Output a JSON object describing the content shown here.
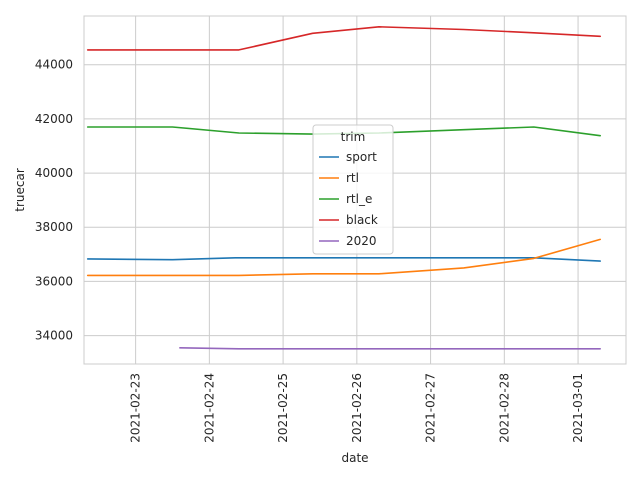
{
  "chart_data": {
    "type": "line",
    "title": "",
    "xlabel": "date",
    "ylabel": "truecar",
    "x_ticks": [
      "2021-02-23",
      "2021-02-24",
      "2021-02-25",
      "2021-02-26",
      "2021-02-27",
      "2021-02-28",
      "2021-03-01"
    ],
    "y_ticks": [
      "34000",
      "36000",
      "38000",
      "40000",
      "42000",
      "44000"
    ],
    "xlim": [
      "2021-02-22 07:12",
      "2021-03-01 15:36"
    ],
    "ylim": [
      32950,
      45800
    ],
    "grid": true,
    "legend": {
      "title": "trim",
      "placement": "center"
    },
    "series": [
      {
        "name": "sport",
        "color": "#1f77b4",
        "points": [
          [
            "2021-02-22 08:24",
            36830
          ],
          [
            "2021-02-23 12:00",
            36800
          ],
          [
            "2021-02-24 08:24",
            36870
          ],
          [
            "2021-02-25 12:00",
            36870
          ],
          [
            "2021-02-26 07:12",
            36870
          ],
          [
            "2021-02-27 10:48",
            36870
          ],
          [
            "2021-02-28 09:36",
            36870
          ],
          [
            "2021-03-01 07:12",
            36750
          ]
        ]
      },
      {
        "name": "rtl",
        "color": "#ff7f0e",
        "points": [
          [
            "2021-02-22 08:24",
            36220
          ],
          [
            "2021-02-23 12:00",
            36220
          ],
          [
            "2021-02-24 09:36",
            36220
          ],
          [
            "2021-02-25 09:36",
            36280
          ],
          [
            "2021-02-26 07:12",
            36280
          ],
          [
            "2021-02-27 10:48",
            36500
          ],
          [
            "2021-02-28 09:36",
            36850
          ],
          [
            "2021-03-01 07:12",
            37550
          ]
        ]
      },
      {
        "name": "rtl_e",
        "color": "#2ca02c",
        "points": [
          [
            "2021-02-22 08:24",
            41700
          ],
          [
            "2021-02-23 12:00",
            41700
          ],
          [
            "2021-02-24 09:36",
            41480
          ],
          [
            "2021-02-25 09:36",
            41440
          ],
          [
            "2021-02-26 07:12",
            41480
          ],
          [
            "2021-02-27 10:48",
            41600
          ],
          [
            "2021-02-28 09:36",
            41700
          ],
          [
            "2021-03-01 07:12",
            41380
          ]
        ]
      },
      {
        "name": "black",
        "color": "#d62728",
        "points": [
          [
            "2021-02-22 08:24",
            44550
          ],
          [
            "2021-02-23 12:00",
            44550
          ],
          [
            "2021-02-24 09:36",
            44550
          ],
          [
            "2021-02-25 09:36",
            45160
          ],
          [
            "2021-02-26 07:12",
            45400
          ],
          [
            "2021-02-27 10:48",
            45300
          ],
          [
            "2021-02-28 09:36",
            45180
          ],
          [
            "2021-03-01 07:12",
            45050
          ]
        ]
      },
      {
        "name": "2020",
        "color": "#9467bd",
        "points": [
          [
            "2021-02-23 14:24",
            33550
          ],
          [
            "2021-02-24 09:36",
            33510
          ],
          [
            "2021-02-25 09:36",
            33510
          ],
          [
            "2021-02-26 07:12",
            33510
          ],
          [
            "2021-02-27 10:48",
            33510
          ],
          [
            "2021-02-28 09:36",
            33510
          ],
          [
            "2021-03-01 07:12",
            33510
          ]
        ]
      }
    ]
  }
}
